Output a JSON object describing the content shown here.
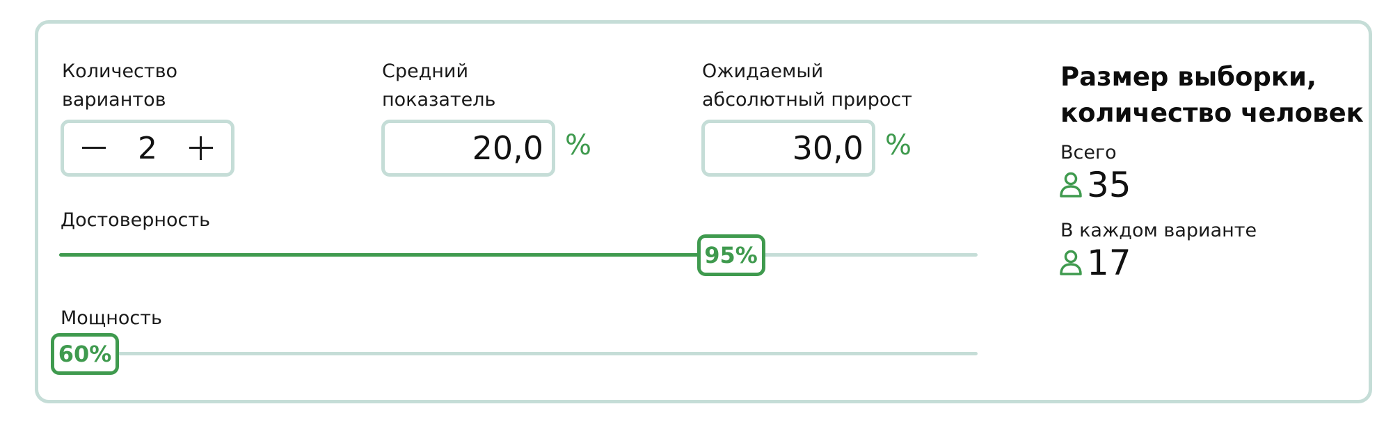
{
  "fields": {
    "variants": {
      "label_line1": "Количество",
      "label_line2": "вариантов",
      "value": "2"
    },
    "average": {
      "label_line1": "Средний",
      "label_line2": "показатель",
      "value": "20,0",
      "unit": "%"
    },
    "growth": {
      "label_line1": "Ожидаемый",
      "label_line2": "абсолютный прирост",
      "value": "30,0",
      "unit": "%"
    }
  },
  "sliders": {
    "confidence": {
      "label": "Достоверность",
      "value_label": "95%",
      "fraction": 0.75
    },
    "power": {
      "label": "Мощность",
      "value_label": "60%",
      "fraction": 0.0
    }
  },
  "result": {
    "title_line1": "Размер выборки,",
    "title_line2": "количество человек",
    "total": {
      "label": "Всего",
      "value": "35"
    },
    "per_variant": {
      "label": "В каждом варианте",
      "value": "17"
    }
  },
  "icons": {
    "minus": "minus-icon",
    "plus": "plus-icon",
    "person": "person-icon"
  },
  "colors": {
    "accent": "#3f9a4e",
    "border": "#c5ddd7"
  }
}
